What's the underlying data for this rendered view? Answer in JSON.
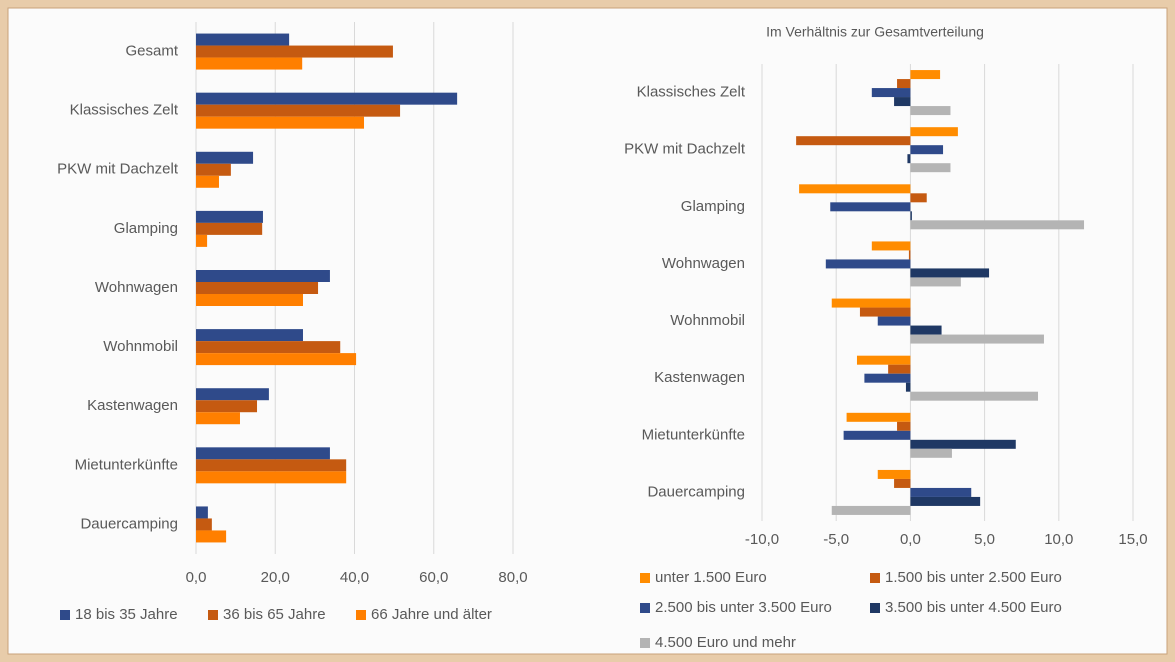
{
  "chart_data": [
    {
      "type": "bar",
      "orientation": "horizontal",
      "categories": [
        "Gesamt",
        "Klassisches Zelt",
        "PKW mit Dachzelt",
        "Glamping",
        "Wohnwagen",
        "Wohnmobil",
        "Kastenwagen",
        "Mietunterkünfte",
        "Dauercamping"
      ],
      "series": [
        {
          "name": "18 bis 35 Jahre",
          "color": "#2f4a8a",
          "values": [
            23.5,
            65.9,
            14.4,
            16.9,
            33.8,
            27.0,
            18.4,
            33.8,
            3.0
          ]
        },
        {
          "name": "36 bis 65 Jahre",
          "color": "#c55a11",
          "values": [
            49.7,
            51.5,
            8.8,
            16.7,
            30.8,
            36.4,
            15.4,
            37.9,
            4.0
          ]
        },
        {
          "name": "66 Jahre und älter",
          "color": "#ff7f00",
          "values": [
            26.8,
            42.4,
            5.8,
            2.8,
            27.0,
            40.4,
            11.1,
            37.9,
            7.6
          ]
        }
      ],
      "xlim": [
        0,
        80
      ],
      "xticks": [
        {
          "value": 0,
          "label": "0,0"
        },
        {
          "value": 20,
          "label": "20,0"
        },
        {
          "value": 40,
          "label": "40,0"
        },
        {
          "value": 60,
          "label": "60,0"
        },
        {
          "value": 80,
          "label": "80,0"
        }
      ],
      "grid": true,
      "legend": "bottom"
    },
    {
      "type": "bar",
      "orientation": "horizontal",
      "title": "Im Verhältnis zur Gesamtverteilung",
      "categories": [
        "Klassisches Zelt",
        "PKW mit Dachzelt",
        "Glamping",
        "Wohnwagen",
        "Wohnmobil",
        "Kastenwagen",
        "Mietunterkünfte",
        "Dauercamping"
      ],
      "series": [
        {
          "name": "unter 1.500 Euro",
          "color": "#ff8c00",
          "values": [
            2.0,
            3.2,
            -7.5,
            -2.6,
            -5.3,
            -3.6,
            -4.3,
            -2.2
          ]
        },
        {
          "name": "1.500 bis unter 2.500 Euro",
          "color": "#c55a11",
          "values": [
            -0.9,
            -7.7,
            1.1,
            -0.1,
            -3.4,
            -1.5,
            -0.9,
            -1.1
          ]
        },
        {
          "name": "2.500 bis unter 3.500 Euro",
          "color": "#2f4a8a",
          "values": [
            -2.6,
            2.2,
            -5.4,
            -5.7,
            -2.2,
            -3.1,
            -4.5,
            4.1
          ]
        },
        {
          "name": "3.500 bis unter 4.500 Euro",
          "color": "#1f3864",
          "values": [
            -1.1,
            -0.2,
            0.1,
            5.3,
            2.1,
            -0.3,
            7.1,
            4.7
          ]
        },
        {
          "name": "4.500 Euro und mehr",
          "color": "#b4b4b4",
          "values": [
            2.7,
            2.7,
            11.7,
            3.4,
            9.0,
            8.6,
            2.8,
            -5.3
          ]
        }
      ],
      "xlim": [
        -10,
        15
      ],
      "xticks": [
        {
          "value": -10,
          "label": "-10,0"
        },
        {
          "value": -5,
          "label": "-5,0"
        },
        {
          "value": 0,
          "label": "0,0"
        },
        {
          "value": 5,
          "label": "5,0"
        },
        {
          "value": 10,
          "label": "10,0"
        },
        {
          "value": 15,
          "label": "15,0"
        }
      ],
      "grid": true,
      "legend": "bottom"
    }
  ]
}
